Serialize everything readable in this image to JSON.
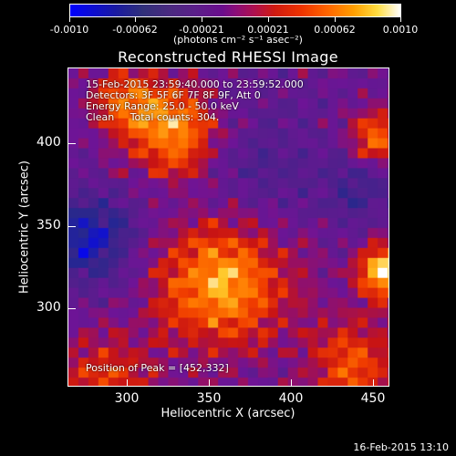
{
  "colorbar": {
    "ticks": [
      "-0.0010",
      "-0.00062",
      "-0.00021",
      "0.00021",
      "0.00062",
      "0.0010"
    ],
    "units": "(photons cm⁻² s⁻¹ asec⁻²)",
    "colors": [
      "#0000ff",
      "#6a0d8c",
      "#d01a10",
      "#ff6600",
      "#ffdd40",
      "#ffffff"
    ]
  },
  "title": "Reconstructed RHESSI Image",
  "info": {
    "time_range": "15-Feb-2015 23:59:40.000 to 23:59:52.000",
    "detectors": "Detectors: 3F 5F 6F 7F 8F 9F, Att 0",
    "energy_range": "Energy Range: 25.0 - 50.0 keV",
    "method": "Clean     Total counts: 304.",
    "peak": "Position of Peak = [452,332]"
  },
  "axes": {
    "xlabel": "Heliocentric X (arcsec)",
    "ylabel": "Heliocentric Y (arcsec)",
    "xticks": [
      "300",
      "350",
      "400",
      "450"
    ],
    "yticks": [
      "400",
      "350",
      "300"
    ],
    "xrange": [
      265,
      460
    ],
    "yrange": [
      250,
      430
    ]
  },
  "timestamp": "16-Feb-2015 13:10"
}
